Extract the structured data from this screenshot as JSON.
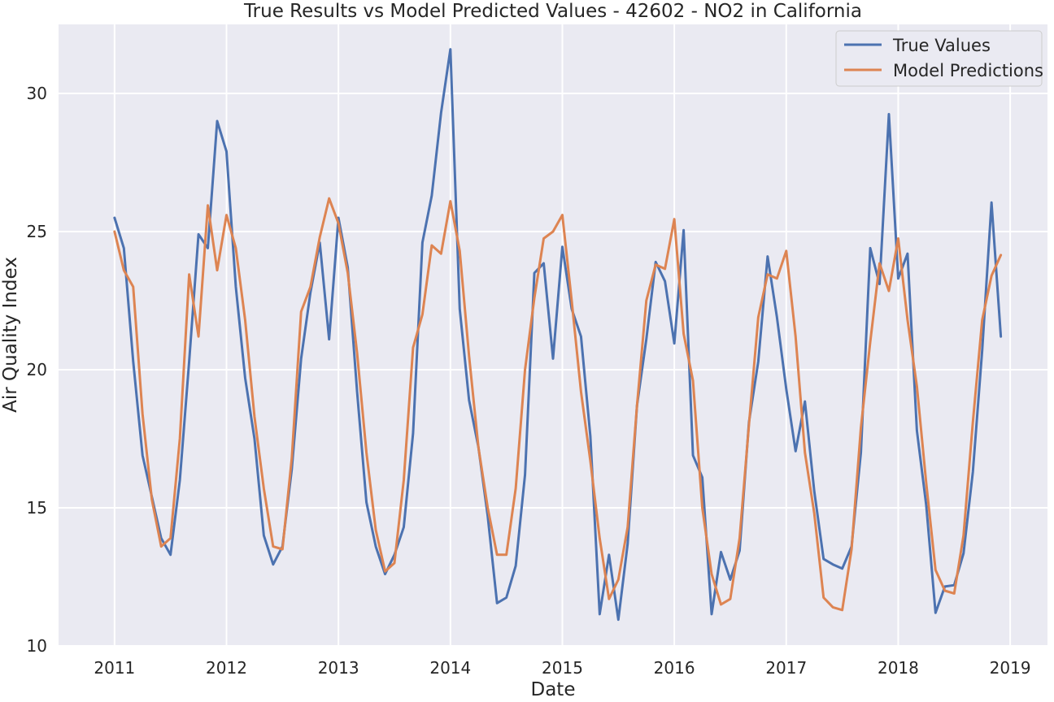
{
  "chart_data": {
    "type": "line",
    "title": "True Results vs Model Predicted Values - 42602 - NO2 in California",
    "xlabel": "Date",
    "ylabel": "Air Quality Index",
    "x_start": "2011-01",
    "x_step": "monthly",
    "x_ticks": [
      "2011",
      "2012",
      "2013",
      "2014",
      "2015",
      "2016",
      "2017",
      "2018",
      "2019"
    ],
    "y_ticks": [
      "10",
      "15",
      "20",
      "25",
      "30"
    ],
    "xlim": [
      "2010-07",
      "2019-05"
    ],
    "ylim": [
      10,
      32.5
    ],
    "grid": true,
    "legend_position": "top-right",
    "background_color": "#eaeaf2",
    "series": [
      {
        "name": "True Values",
        "color": "#4c72b0",
        "values": [
          25.5,
          24.4,
          20.3,
          16.9,
          15.4,
          13.9,
          13.3,
          16.0,
          20.3,
          24.9,
          24.4,
          29.0,
          27.9,
          23.0,
          19.7,
          17.5,
          14.0,
          12.95,
          13.6,
          16.4,
          20.4,
          22.8,
          24.6,
          21.1,
          25.5,
          23.7,
          19.2,
          15.2,
          13.6,
          12.6,
          13.3,
          14.3,
          17.7,
          24.6,
          26.3,
          29.3,
          31.6,
          22.2,
          18.9,
          17.2,
          14.7,
          11.55,
          11.75,
          12.9,
          16.2,
          23.5,
          23.85,
          20.4,
          24.45,
          22.2,
          21.2,
          17.6,
          11.15,
          13.3,
          10.95,
          13.7,
          18.7,
          21.1,
          23.9,
          23.2,
          20.95,
          25.05,
          16.9,
          16.1,
          11.15,
          13.4,
          12.4,
          13.45,
          18.1,
          20.3,
          24.1,
          21.9,
          19.3,
          17.05,
          18.85,
          15.6,
          13.15,
          12.95,
          12.8,
          13.6,
          17.0,
          24.4,
          23.1,
          29.25,
          23.3,
          24.2,
          17.8,
          15.1,
          11.2,
          12.15,
          12.2,
          13.35,
          16.3,
          20.7,
          26.05,
          21.2
        ]
      },
      {
        "name": "Model Predictions",
        "color": "#dd8452",
        "values": [
          25.0,
          23.6,
          23.0,
          18.4,
          15.3,
          13.6,
          13.9,
          17.5,
          23.45,
          21.2,
          25.95,
          23.6,
          25.6,
          24.4,
          21.8,
          18.3,
          15.7,
          13.6,
          13.5,
          16.8,
          22.1,
          23.0,
          24.8,
          26.2,
          25.3,
          23.5,
          20.6,
          17.0,
          14.2,
          12.7,
          13.0,
          16.0,
          20.8,
          22.0,
          24.5,
          24.2,
          26.1,
          24.3,
          20.5,
          17.2,
          15.0,
          13.3,
          13.3,
          15.7,
          20.0,
          22.6,
          24.75,
          25.0,
          25.6,
          22.5,
          19.2,
          16.7,
          13.9,
          11.7,
          12.4,
          14.3,
          18.7,
          22.5,
          23.8,
          23.65,
          25.45,
          21.3,
          19.6,
          15.0,
          12.6,
          11.5,
          11.7,
          13.9,
          18.0,
          21.9,
          23.45,
          23.3,
          24.3,
          21.2,
          17.0,
          14.8,
          11.75,
          11.4,
          11.3,
          13.5,
          17.9,
          21.0,
          23.85,
          22.85,
          24.75,
          21.8,
          19.4,
          15.9,
          12.75,
          12.0,
          11.9,
          14.0,
          18.1,
          21.8,
          23.4,
          24.15
        ]
      }
    ]
  }
}
